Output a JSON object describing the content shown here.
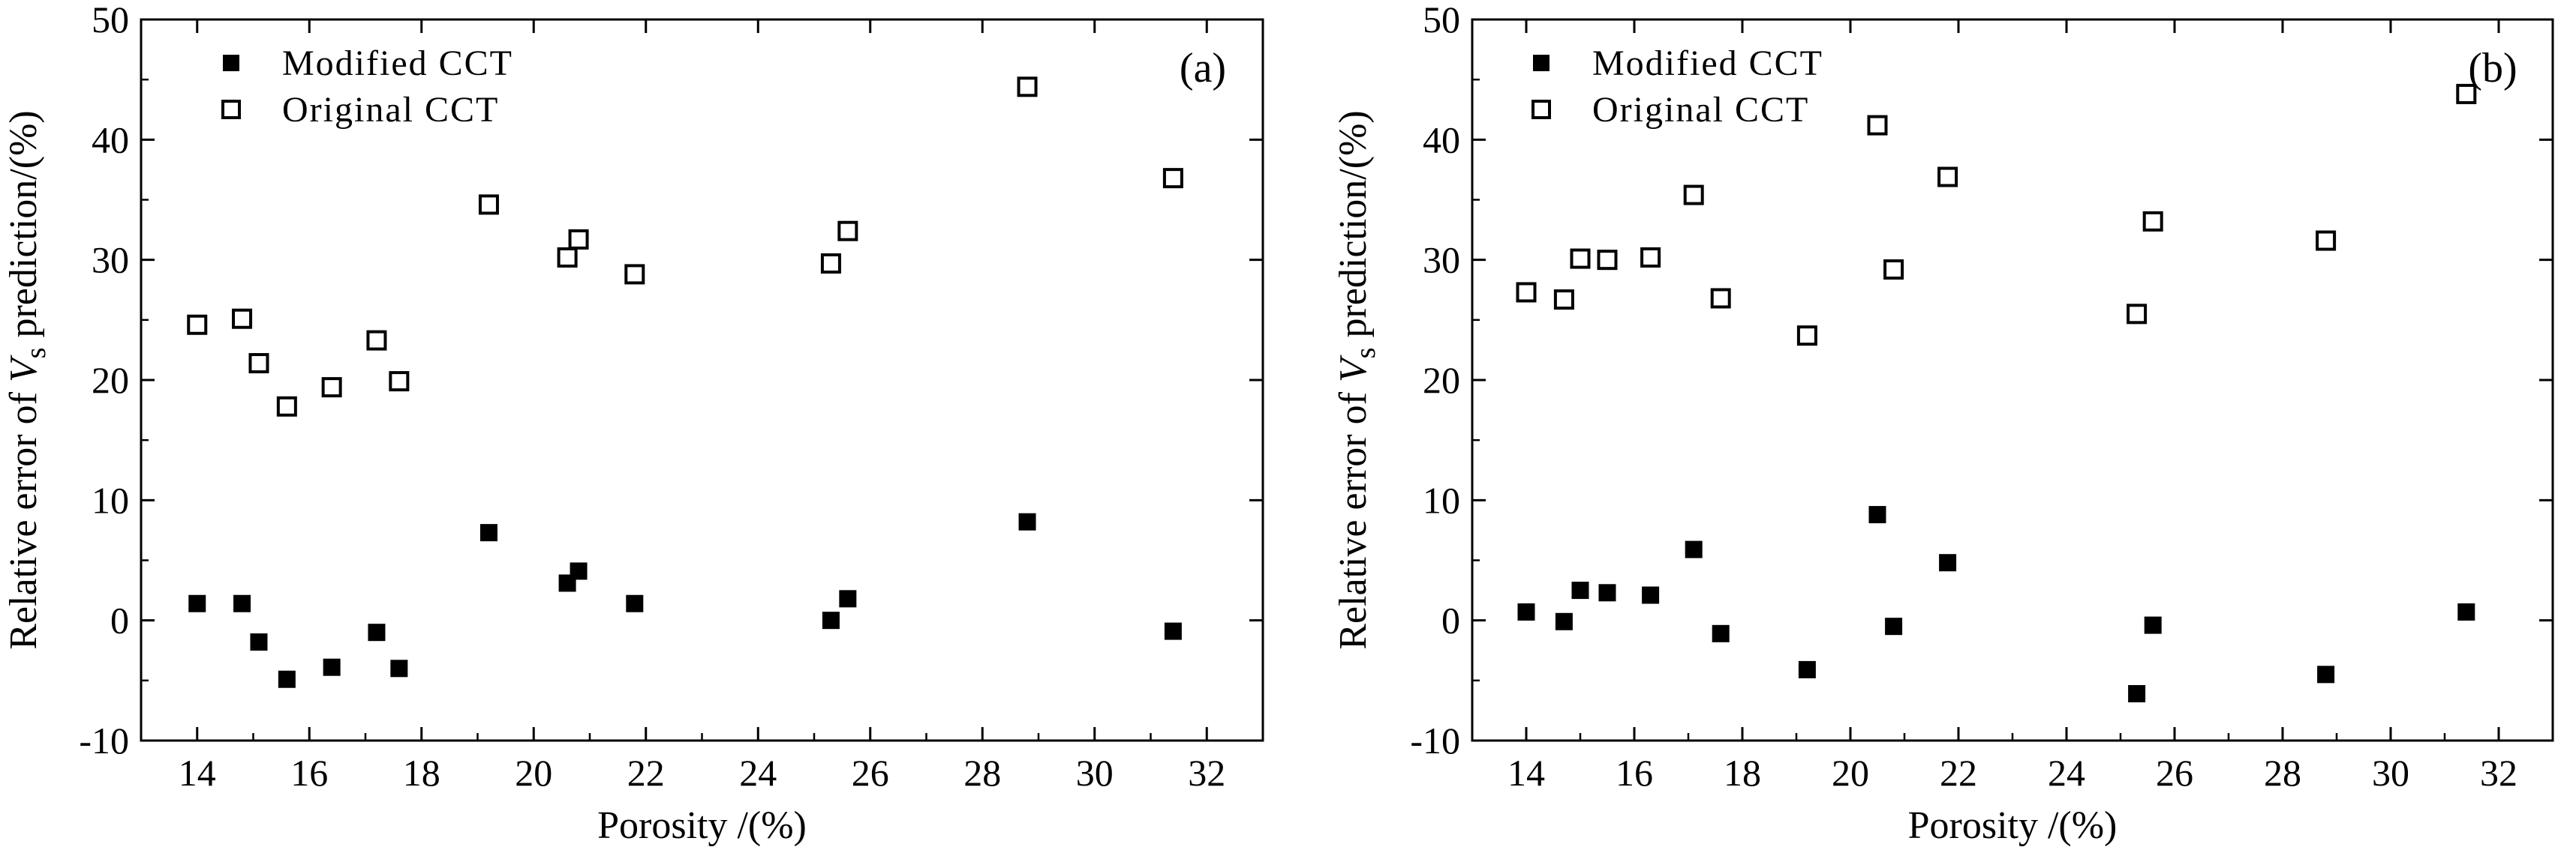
{
  "chart_data": [
    {
      "type": "scatter",
      "panel_label": "(a)",
      "xlabel": "Porosity /(%)",
      "ylabel": {
        "prefix": "Relative error of ",
        "var": "V",
        "sub": "s",
        "suffix": " prediction/(%)"
      },
      "xlim": [
        13,
        33
      ],
      "ylim": [
        -10,
        50
      ],
      "xticks": [
        "14",
        "16",
        "18",
        "20",
        "22",
        "24",
        "26",
        "28",
        "30",
        "32"
      ],
      "yticks": [
        "-10",
        "0",
        "10",
        "20",
        "30",
        "40",
        "50"
      ],
      "legend_position": "top-left",
      "series": [
        {
          "name": "Modified CCT",
          "marker": "filled-square",
          "x": [
            14.0,
            14.8,
            15.1,
            15.6,
            16.4,
            17.2,
            17.6,
            19.2,
            20.6,
            20.8,
            21.8,
            25.3,
            25.6,
            28.8,
            31.4
          ],
          "y": [
            1.4,
            1.4,
            -1.8,
            -4.9,
            -3.9,
            -1.0,
            -4.0,
            7.3,
            3.1,
            4.1,
            1.4,
            0.0,
            1.8,
            8.2,
            -0.9
          ]
        },
        {
          "name": "Original CCT",
          "marker": "open-square",
          "x": [
            14.0,
            14.8,
            15.1,
            15.6,
            16.4,
            17.2,
            17.6,
            19.2,
            20.6,
            20.8,
            21.8,
            25.3,
            25.6,
            28.8,
            31.4
          ],
          "y": [
            24.6,
            25.1,
            21.4,
            17.8,
            19.4,
            23.3,
            19.9,
            34.6,
            30.2,
            31.7,
            28.8,
            29.7,
            32.4,
            44.4,
            36.8
          ]
        }
      ]
    },
    {
      "type": "scatter",
      "panel_label": "(b)",
      "xlabel": "Porosity /(%)",
      "ylabel": {
        "prefix": "Relative error of ",
        "var": "V",
        "sub": "s",
        "suffix": " prediction/(%)"
      },
      "xlim": [
        13,
        33
      ],
      "ylim": [
        -10,
        50
      ],
      "xticks": [
        "14",
        "16",
        "18",
        "20",
        "22",
        "24",
        "26",
        "28",
        "30",
        "32"
      ],
      "yticks": [
        "-10",
        "0",
        "10",
        "20",
        "30",
        "40",
        "50"
      ],
      "legend_position": "top-left",
      "series": [
        {
          "name": "Modified CCT",
          "marker": "filled-square",
          "x": [
            14.0,
            14.7,
            15.0,
            15.5,
            16.3,
            17.1,
            17.6,
            19.2,
            20.5,
            20.8,
            21.8,
            25.3,
            25.6,
            28.8,
            31.4
          ],
          "y": [
            0.7,
            -0.1,
            2.5,
            2.3,
            2.1,
            5.9,
            -1.1,
            -4.1,
            8.8,
            -0.5,
            4.8,
            -6.1,
            -0.4,
            -4.5,
            0.7
          ]
        },
        {
          "name": "Original CCT",
          "marker": "open-square",
          "x": [
            14.0,
            14.7,
            15.0,
            15.5,
            16.3,
            17.1,
            17.6,
            19.2,
            20.5,
            20.8,
            21.8,
            25.3,
            25.6,
            28.8,
            31.4
          ],
          "y": [
            27.3,
            26.7,
            30.1,
            30.0,
            30.2,
            35.4,
            26.8,
            23.7,
            41.2,
            29.2,
            36.9,
            25.5,
            33.2,
            31.6,
            43.8
          ]
        }
      ]
    }
  ]
}
